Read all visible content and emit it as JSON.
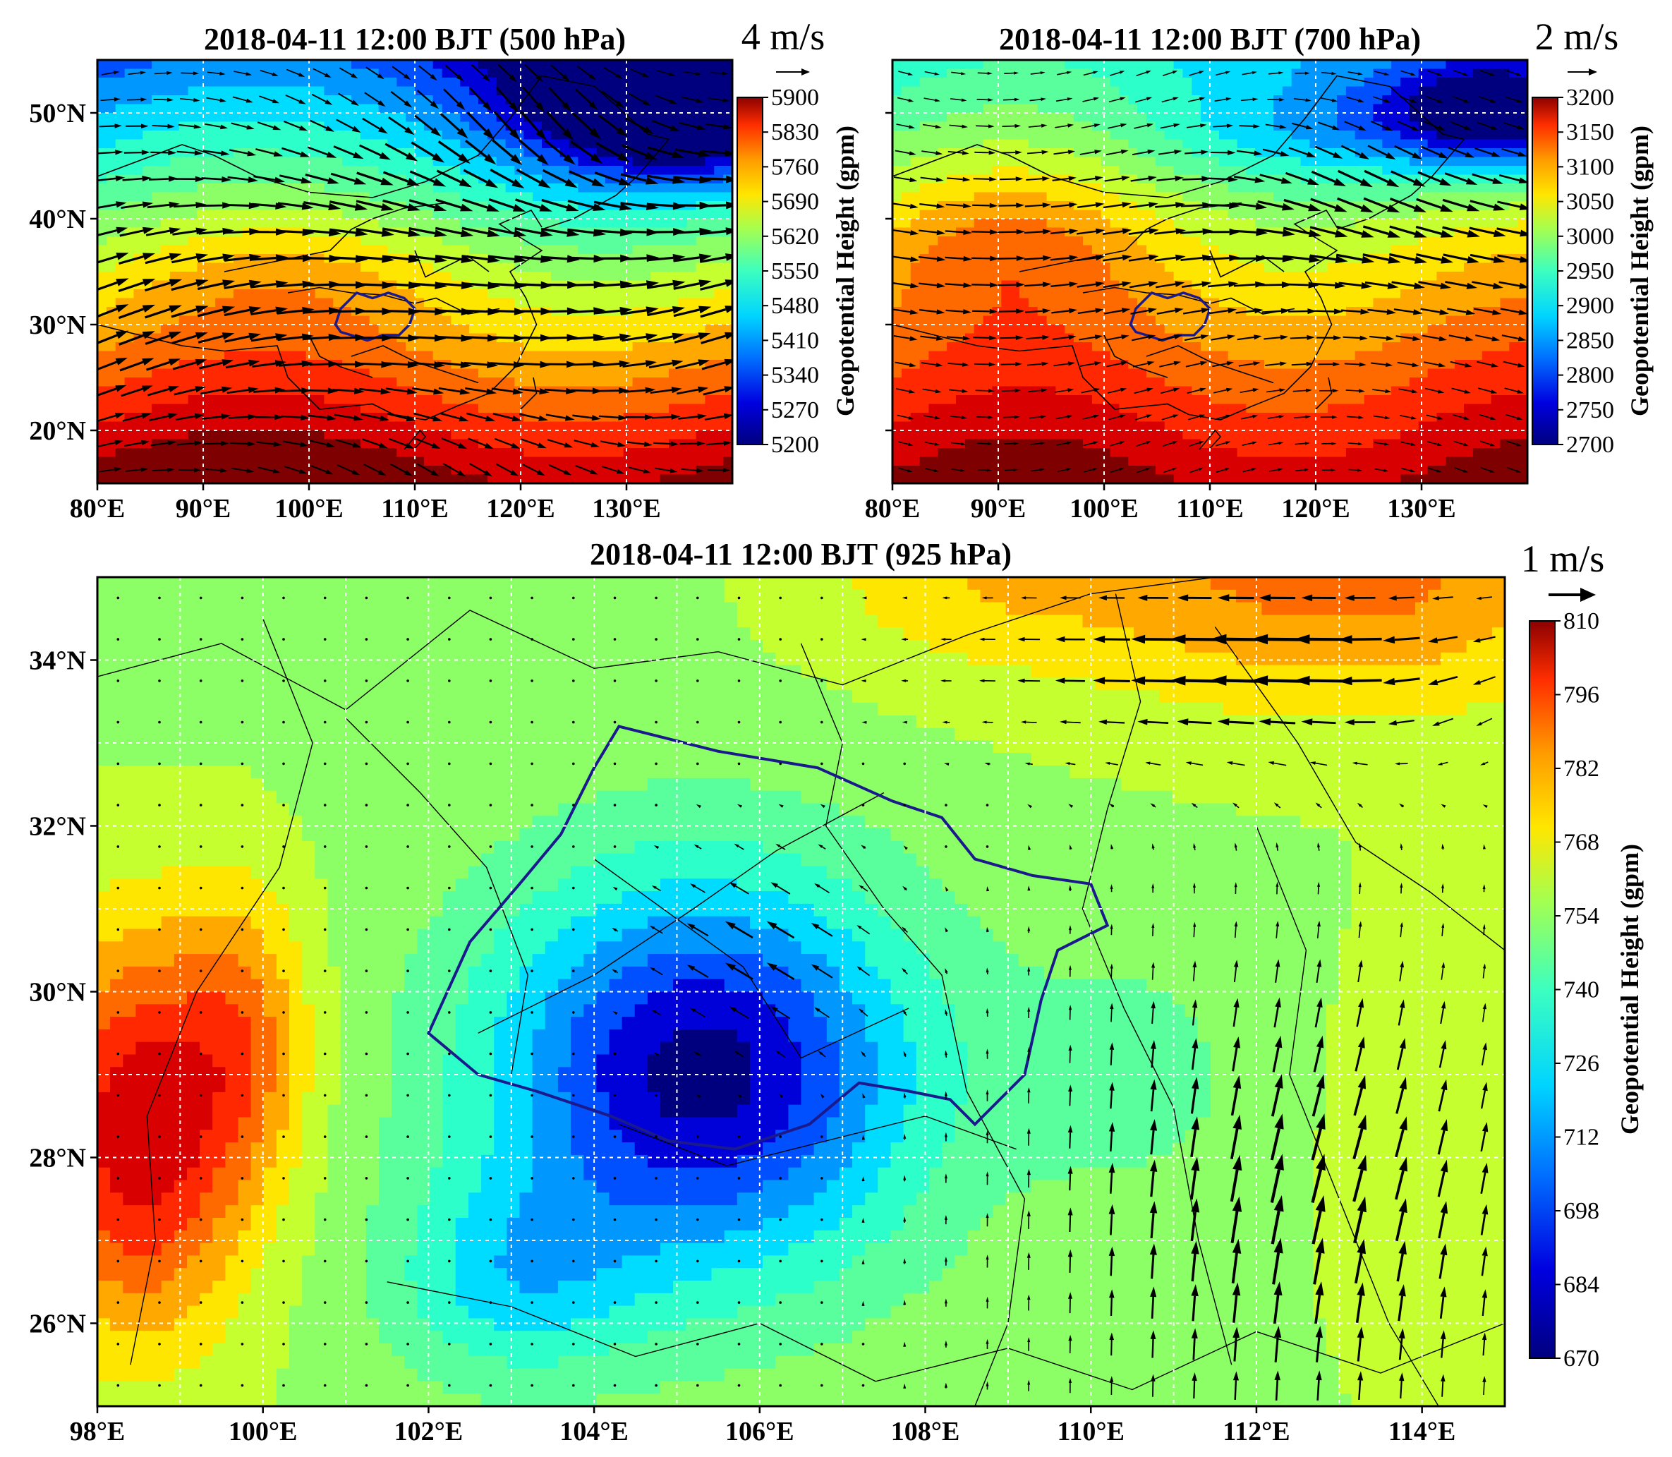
{
  "panels": [
    {
      "id": "500",
      "title": "2018-04-11 12:00 BJT (500 hPa)",
      "lon_range": [
        80,
        140
      ],
      "lat_range": [
        15,
        55
      ],
      "x_ticks": [
        "80°E",
        "90°E",
        "100°E",
        "110°E",
        "120°E",
        "130°E"
      ],
      "y_ticks": [
        "20°N",
        "30°N",
        "40°N",
        "50°N"
      ],
      "vector_scale_label": "4 m/s",
      "colorbar": {
        "label": "Geopotential Height (gpm)",
        "ticks": [
          "5900",
          "5830",
          "5760",
          "5690",
          "5620",
          "5550",
          "5480",
          "5410",
          "5340",
          "5270",
          "5200"
        ],
        "range": [
          5200,
          5900
        ]
      },
      "field": "zonal jet: high heights in south (red), low heights north-east (blue trough near 50°N, 130°E); westerly flow wrapping around the trough",
      "highlighted_region": "Sichuan Basin / Chongqing outline near 30°N, 105°E"
    },
    {
      "id": "700",
      "title": "2018-04-11 12:00 BJT (700 hPa)",
      "lon_range": [
        80,
        140
      ],
      "lat_range": [
        15,
        55
      ],
      "x_ticks": [
        "80°E",
        "90°E",
        "100°E",
        "110°E",
        "120°E",
        "130°E"
      ],
      "y_ticks": [],
      "vector_scale_label": "2 m/s",
      "colorbar": {
        "label": "Geopotential Height (gpm)",
        "ticks": [
          "3200",
          "3150",
          "3100",
          "3050",
          "3000",
          "2950",
          "2900",
          "2850",
          "2800",
          "2750",
          "2700"
        ],
        "range": [
          2700,
          3200
        ]
      },
      "field": "high heights south, green band around 45-50°N, low north-east; westerly to north-westerly flow",
      "highlighted_region": "Sichuan Basin / Chongqing outline near 30°N, 105°E"
    },
    {
      "id": "925",
      "title": "2018-04-11 12:00 BJT (925 hPa)",
      "lon_range": [
        98,
        115
      ],
      "lat_range": [
        25,
        35
      ],
      "x_ticks": [
        "98°E",
        "100°E",
        "102°E",
        "104°E",
        "106°E",
        "108°E",
        "110°E",
        "112°E",
        "114°E"
      ],
      "y_ticks": [
        "26°N",
        "28°N",
        "30°N",
        "32°N",
        "34°N"
      ],
      "vector_scale_label": "1 m/s",
      "colorbar": {
        "label": "Geopotential Height (gpm)",
        "ticks": [
          "810",
          "796",
          "782",
          "768",
          "754",
          "740",
          "726",
          "712",
          "698",
          "684",
          "670"
        ],
        "range": [
          670,
          810
        ]
      },
      "field": "low centred over Sichuan Basin (~105.5°E, 29°N, ~675 gpm); high to west near 98-100°E (~790 gpm) and north-east near 113°E, 35°N (~765 gpm); strong southerly flow east of 109°E curving to easterly near 33-35°N",
      "highlighted_region": "Sichuan Basin / Chongqing outline"
    }
  ],
  "colors": {
    "colormap": [
      "#00007f",
      "#0000d8",
      "#0050ff",
      "#0098ff",
      "#00dcff",
      "#2cffc9",
      "#58ff9c",
      "#8cff67",
      "#c6ff30",
      "#ffe600",
      "#ffa800",
      "#ff6a00",
      "#ff2800",
      "#d80000",
      "#7f0000"
    ],
    "region_outline": "#1a1a8c",
    "arrow": "#000000",
    "grid": "#ffffff"
  }
}
